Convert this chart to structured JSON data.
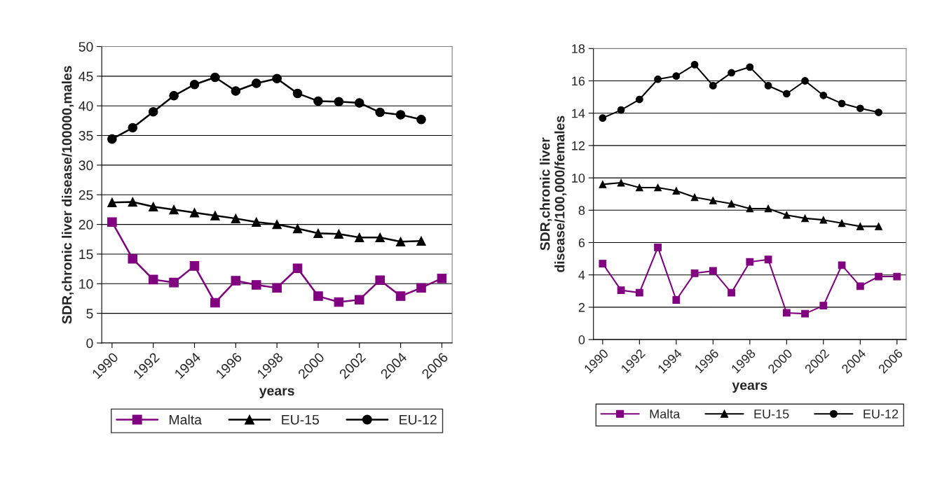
{
  "chart_data": [
    {
      "type": "line",
      "xlabel": "years",
      "ylabel": "SDR,chronic liver disease/100000,males",
      "x": [
        1990,
        1991,
        1992,
        1993,
        1994,
        1995,
        1996,
        1997,
        1998,
        1999,
        2000,
        2001,
        2002,
        2003,
        2004,
        2005,
        2006
      ],
      "xlim": [
        1989.5,
        2006.5
      ],
      "xticks": [
        1990,
        1992,
        1994,
        1996,
        1998,
        2000,
        2002,
        2004,
        2006
      ],
      "ylim": [
        0,
        50
      ],
      "yticks": [
        0,
        5,
        10,
        15,
        20,
        25,
        30,
        35,
        40,
        45,
        50
      ],
      "grid": "y",
      "legend": "bottom",
      "series": [
        {
          "name": "Malta",
          "color": "#800080",
          "marker": "square",
          "values": [
            20.4,
            14.2,
            10.7,
            10.2,
            13.0,
            6.8,
            10.5,
            9.8,
            9.3,
            12.6,
            7.9,
            6.9,
            7.3,
            10.6,
            7.9,
            9.3,
            10.9
          ]
        },
        {
          "name": "EU-15",
          "color": "#000000",
          "marker": "triangle",
          "values": [
            23.7,
            23.8,
            23.0,
            22.5,
            22.0,
            21.5,
            21.0,
            20.4,
            20.0,
            19.3,
            18.5,
            18.4,
            17.8,
            17.8,
            17.1,
            17.2,
            null
          ]
        },
        {
          "name": "EU-12",
          "color": "#000000",
          "marker": "circle",
          "values": [
            34.4,
            36.3,
            39.0,
            41.7,
            43.6,
            44.8,
            42.5,
            43.8,
            44.6,
            42.1,
            40.8,
            40.7,
            40.5,
            38.9,
            38.5,
            37.7,
            null
          ]
        }
      ]
    },
    {
      "type": "line",
      "xlabel": "years",
      "ylabel": "SDR,chronic liver\ndisease/100,000/females",
      "x": [
        1990,
        1991,
        1992,
        1993,
        1994,
        1995,
        1996,
        1997,
        1998,
        1999,
        2000,
        2001,
        2002,
        2003,
        2004,
        2005,
        2006
      ],
      "xlim": [
        1989.5,
        2006.5
      ],
      "xticks": [
        1990,
        1992,
        1994,
        1996,
        1998,
        2000,
        2002,
        2004,
        2006
      ],
      "ylim": [
        0,
        18
      ],
      "yticks": [
        0,
        2,
        4,
        6,
        8,
        10,
        12,
        14,
        16,
        18
      ],
      "grid": "y",
      "legend": "bottom",
      "series": [
        {
          "name": "Malta",
          "color": "#800080",
          "marker": "square",
          "values": [
            4.7,
            3.05,
            2.9,
            5.7,
            2.45,
            4.1,
            4.25,
            2.9,
            4.8,
            4.95,
            1.65,
            1.6,
            2.1,
            4.6,
            3.3,
            3.9,
            3.9
          ]
        },
        {
          "name": "EU-15",
          "color": "#000000",
          "marker": "triangle",
          "values": [
            9.6,
            9.7,
            9.4,
            9.4,
            9.2,
            8.8,
            8.6,
            8.4,
            8.1,
            8.1,
            7.7,
            7.5,
            7.4,
            7.2,
            7.0,
            7.0,
            null
          ]
        },
        {
          "name": "EU-12",
          "color": "#000000",
          "marker": "circle",
          "values": [
            13.7,
            14.2,
            14.85,
            16.1,
            16.3,
            17.0,
            15.7,
            16.5,
            16.85,
            15.7,
            15.2,
            16.0,
            15.1,
            14.6,
            14.3,
            14.05,
            null
          ]
        }
      ]
    }
  ]
}
